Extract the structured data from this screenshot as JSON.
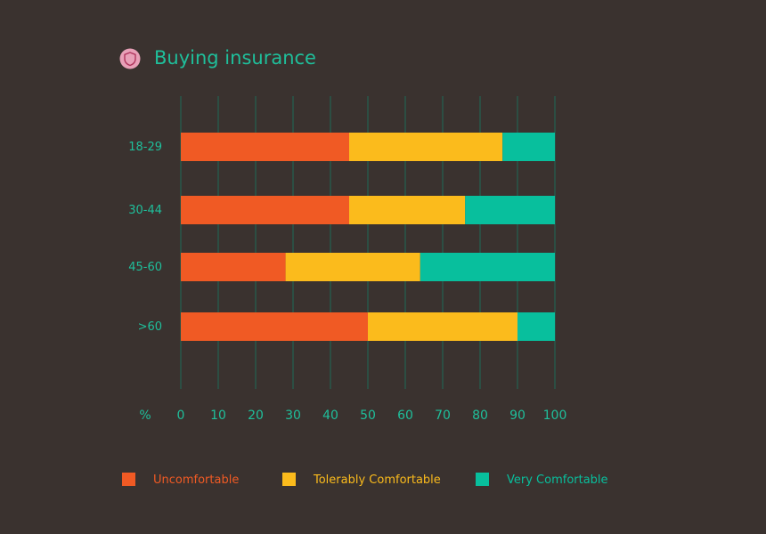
{
  "title": "Buying insurance",
  "icon": "shield-icon",
  "colors": {
    "background": "#3a322f",
    "accent": "#1fbf9b",
    "icon_circle": "#e8a0b8",
    "icon_stroke": "#b0365e",
    "grid": "#1f6b57"
  },
  "legend": [
    {
      "label": "Uncomfortable",
      "color": "#f05a24"
    },
    {
      "label": "Tolerably Comfortable",
      "color": "#fbbb1c"
    },
    {
      "label": "Very Comfortable",
      "color": "#08bf9d"
    }
  ],
  "chart_data": {
    "type": "bar",
    "orientation": "horizontal",
    "stacked": true,
    "categories": [
      "18-29",
      "30-44",
      "45-60",
      ">60"
    ],
    "series": [
      {
        "name": "Uncomfortable",
        "values": [
          45,
          45,
          28,
          50
        ]
      },
      {
        "name": "Tolerably Comfortable",
        "values": [
          41,
          31,
          36,
          40
        ]
      },
      {
        "name": "Very Comfortable",
        "values": [
          14,
          24,
          36,
          10
        ]
      }
    ],
    "xlabel": "%",
    "xlim": [
      0,
      100
    ],
    "xticks": [
      "0",
      "10",
      "20",
      "30",
      "40",
      "50",
      "60",
      "70",
      "80",
      "90",
      "100"
    ],
    "grid": true,
    "legend_position": "bottom"
  }
}
